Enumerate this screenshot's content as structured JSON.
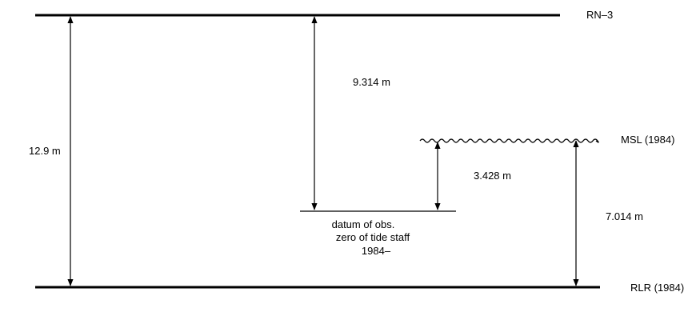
{
  "diagram": {
    "levels": {
      "rn3": "RN–3",
      "msl": "MSL (1984)",
      "rlr": "RLR (1984)"
    },
    "distances": {
      "rn3_to_rlr": "12.9 m",
      "rn3_to_datum": "9.314 m",
      "msl_to_datum": "3.428 m",
      "msl_to_rlr": "7.014 m"
    },
    "datum_label": {
      "line1": "datum of obs.",
      "line2": "zero of tide staff",
      "line3": "1984–"
    }
  }
}
